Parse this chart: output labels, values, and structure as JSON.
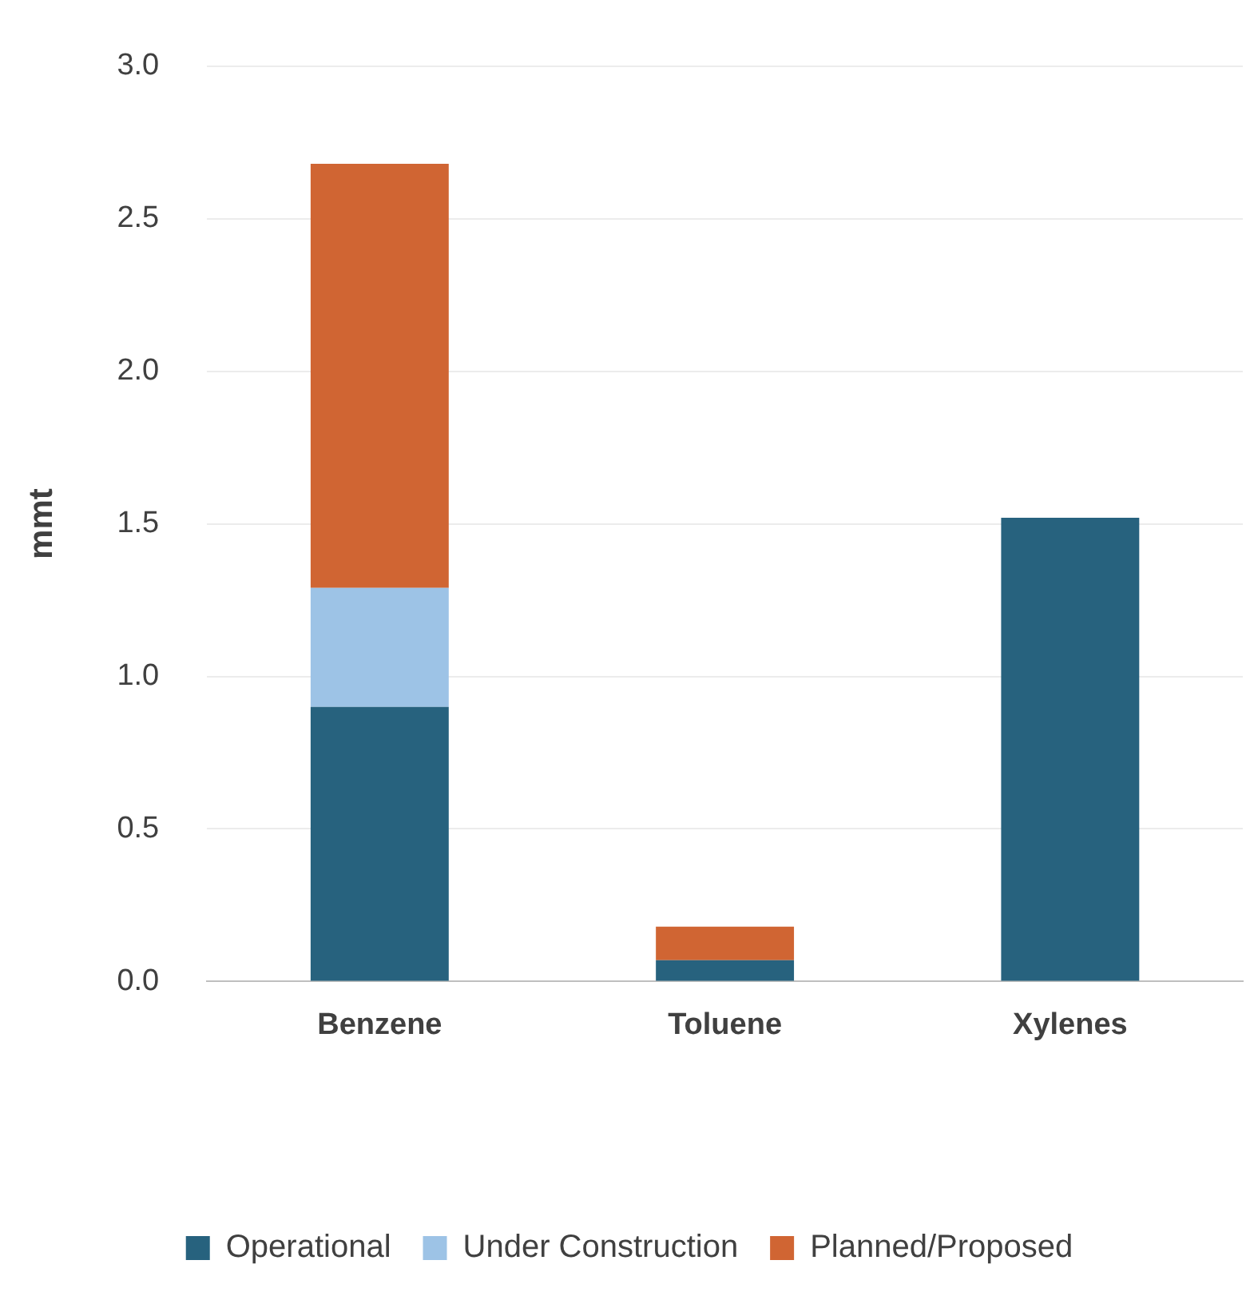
{
  "chart_data": {
    "type": "bar",
    "stacked": true,
    "ylabel": "mmt",
    "categories": [
      "Benzene",
      "Toluene",
      "Xylenes"
    ],
    "series": [
      {
        "name": "Operational",
        "color": "#27627e",
        "values": [
          0.9,
          0.07,
          1.52
        ]
      },
      {
        "name": "Under Construction",
        "color": "#9dc3e6",
        "values": [
          0.39,
          0,
          0
        ]
      },
      {
        "name": "Planned/Proposed",
        "color": "#d06533",
        "values": [
          1.39,
          0.11,
          0
        ]
      }
    ],
    "ylim": [
      0,
      3
    ],
    "yticks": [
      {
        "value": 0,
        "label": "0.0"
      },
      {
        "value": 0.5,
        "label": "0.5"
      },
      {
        "value": 1,
        "label": "1.0"
      },
      {
        "value": 1.5,
        "label": "1.5"
      },
      {
        "value": 2,
        "label": "2.0"
      },
      {
        "value": 2.5,
        "label": "2.5"
      },
      {
        "value": 3,
        "label": "3.0"
      }
    ],
    "grid": "y",
    "legend": "bottom"
  }
}
